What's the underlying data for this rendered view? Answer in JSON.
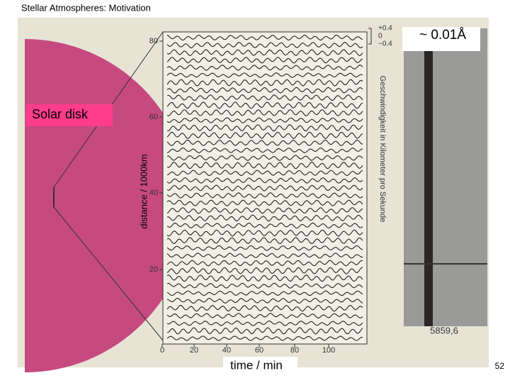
{
  "header": {
    "title": "Stellar Atmospheres:   Motivation"
  },
  "figure": {
    "disk_label": "Solar disk",
    "y_axis_label": "distance / 1000km",
    "x_axis_label": "time / min",
    "x_ticks": [
      "0",
      "20",
      "40",
      "60",
      "80",
      "100"
    ],
    "y_ticks": [
      "80",
      "60",
      "40",
      "20"
    ],
    "scale_ticks": [
      "+0.4",
      "0",
      "−0.4"
    ],
    "scale_label": "Geschwindigkeit in Kilometer pro Sekunde",
    "spectrum_label": "~ 0.01Å",
    "wavelength": "5859,6"
  },
  "footer": {
    "page_number": "52"
  }
}
